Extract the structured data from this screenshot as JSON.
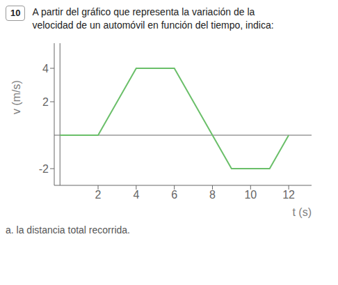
{
  "chart_data": {
    "type": "line",
    "title": "A partir del gráfico que representa la variación de la velocidad de un automóvil en función del tiempo, indica:",
    "annotations": [
      "10",
      "a. la distancia total recorrida."
    ],
    "xlabel": "t (s)",
    "ylabel": "v (m/s)",
    "x": [
      0,
      2,
      4,
      6,
      8,
      9,
      11,
      12
    ],
    "values": [
      0,
      0,
      4,
      4,
      0,
      -2,
      -2,
      0
    ],
    "color": "#6abf69",
    "xlim": [
      -0.3,
      13.2
    ],
    "ylim": [
      -3.0,
      5.5
    ],
    "xticks": [
      2,
      4,
      6,
      8,
      10,
      12
    ],
    "yticks": [
      -2,
      2,
      4
    ],
    "grid": false
  }
}
